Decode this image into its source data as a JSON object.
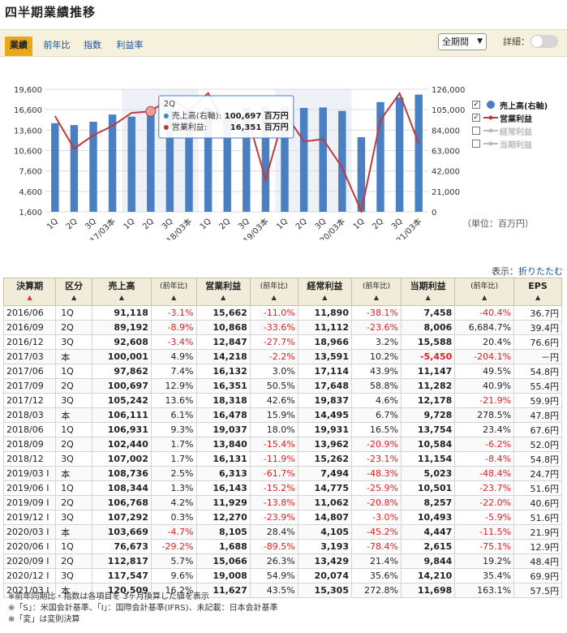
{
  "page_title": "四半期業績推移",
  "tabs": [
    {
      "label": "業績",
      "active": true
    },
    {
      "label": "前年比",
      "active": false
    },
    {
      "label": "指数",
      "active": false
    },
    {
      "label": "利益率",
      "active": false
    }
  ],
  "period_select": {
    "value": "全期間"
  },
  "detail_label": "詳細：",
  "legend": [
    {
      "label": "売上高(右軸)",
      "checked": true,
      "kind": "bar",
      "color": "#4a7fc1"
    },
    {
      "label": "営業利益",
      "checked": true,
      "kind": "line",
      "color": "#c0393b"
    },
    {
      "label": "経常利益",
      "checked": false,
      "kind": "line",
      "color": "#bbbbbb"
    },
    {
      "label": "当期利益",
      "checked": false,
      "kind": "line",
      "color": "#bbbbbb"
    }
  ],
  "tooltip": {
    "title": "2Q",
    "row1_label": "売上高(右軸):",
    "row1_value": "100,697 百万円",
    "row2_label": "営業利益:",
    "row2_value": "16,351 百万円"
  },
  "unit_note": "（単位：百万円）",
  "display_label": "表示：",
  "collapse_link": "折りたたむ",
  "chart_data": {
    "type": "bar",
    "categories": [
      "1Q",
      "2Q",
      "3Q",
      "2017/03本",
      "1Q",
      "2Q",
      "3Q",
      "2018/03本",
      "1Q",
      "2Q",
      "3Q",
      "2019/03本",
      "1Q",
      "2Q",
      "3Q",
      "2020/03本",
      "1Q",
      "2Q",
      "3Q",
      "2021/03本"
    ],
    "series": [
      {
        "name": "売上高(右軸)",
        "axis": "right",
        "kind": "bar",
        "values": [
          91118,
          89192,
          92608,
          100001,
          97862,
          100697,
          105242,
          106111,
          106931,
          102440,
          107002,
          108736,
          108344,
          106768,
          107292,
          103669,
          76673,
          112817,
          117547,
          120509
        ]
      },
      {
        "name": "営業利益",
        "axis": "left",
        "kind": "line",
        "values": [
          15662,
          10868,
          12847,
          14218,
          16132,
          16351,
          18318,
          16478,
          19037,
          13840,
          16131,
          6313,
          16143,
          11929,
          12270,
          8105,
          1688,
          15066,
          19008,
          11627
        ]
      }
    ],
    "left_axis": {
      "ticks": [
        "19,600",
        "16,600",
        "13,600",
        "10,600",
        "7,600",
        "4,600",
        "1,600"
      ],
      "range": [
        1600,
        19600
      ]
    },
    "right_axis": {
      "ticks": [
        "126,000",
        "105,000",
        "84,000",
        "63,000",
        "42,000",
        "21,000",
        "0"
      ],
      "range": [
        0,
        126000
      ]
    },
    "highlighted_index": 5,
    "grid": true
  },
  "table": {
    "headers": [
      {
        "label": "決算期",
        "sort_active": true
      },
      {
        "label": "区分",
        "sort_active": false
      },
      {
        "label": "売上高",
        "sort_active": false
      },
      {
        "label": "(前年比)",
        "small": true
      },
      {
        "label": "営業利益",
        "sort_active": false
      },
      {
        "label": "(前年比)",
        "small": true
      },
      {
        "label": "経常利益",
        "sort_active": false
      },
      {
        "label": "(前年比)",
        "small": true
      },
      {
        "label": "当期利益",
        "sort_active": false
      },
      {
        "label": "(前年比)",
        "small": true
      },
      {
        "label": "EPS",
        "sort_active": false
      }
    ],
    "sort_glyph": "▲",
    "rows": [
      [
        "2016/06",
        "1Q",
        "91,118",
        "-3.1%",
        "15,662",
        "-11.0%",
        "11,890",
        "-38.1%",
        "7,458",
        "-40.4%",
        "36.7円"
      ],
      [
        "2016/09",
        "2Q",
        "89,192",
        "-8.9%",
        "10,868",
        "-33.6%",
        "11,112",
        "-23.6%",
        "8,006",
        "6,684.7%",
        "39.4円"
      ],
      [
        "2016/12",
        "3Q",
        "92,608",
        "-3.4%",
        "12,847",
        "-27.7%",
        "18,966",
        "3.2%",
        "15,588",
        "20.4%",
        "76.6円"
      ],
      [
        "2017/03",
        "本",
        "100,001",
        "4.9%",
        "14,218",
        "-2.2%",
        "13,591",
        "10.2%",
        "-5,450",
        "-204.1%",
        "－円"
      ],
      [
        "2017/06",
        "1Q",
        "97,862",
        "7.4%",
        "16,132",
        "3.0%",
        "17,114",
        "43.9%",
        "11,147",
        "49.5%",
        "54.8円"
      ],
      [
        "2017/09",
        "2Q",
        "100,697",
        "12.9%",
        "16,351",
        "50.5%",
        "17,648",
        "58.8%",
        "11,282",
        "40.9%",
        "55.4円"
      ],
      [
        "2017/12",
        "3Q",
        "105,242",
        "13.6%",
        "18,318",
        "42.6%",
        "19,837",
        "4.6%",
        "12,178",
        "-21.9%",
        "59.9円"
      ],
      [
        "2018/03",
        "本",
        "106,111",
        "6.1%",
        "16,478",
        "15.9%",
        "14,495",
        "6.7%",
        "9,728",
        "278.5%",
        "47.8円"
      ],
      [
        "2018/06",
        "1Q",
        "106,931",
        "9.3%",
        "19,037",
        "18.0%",
        "19,931",
        "16.5%",
        "13,754",
        "23.4%",
        "67.6円"
      ],
      [
        "2018/09",
        "2Q",
        "102,440",
        "1.7%",
        "13,840",
        "-15.4%",
        "13,962",
        "-20.9%",
        "10,584",
        "-6.2%",
        "52.0円"
      ],
      [
        "2018/12",
        "3Q",
        "107,002",
        "1.7%",
        "16,131",
        "-11.9%",
        "15,262",
        "-23.1%",
        "11,154",
        "-8.4%",
        "54.8円"
      ],
      [
        "2019/03 I",
        "本",
        "108,736",
        "2.5%",
        "6,313",
        "-61.7%",
        "7,494",
        "-48.3%",
        "5,023",
        "-48.4%",
        "24.7円"
      ],
      [
        "2019/06 I",
        "1Q",
        "108,344",
        "1.3%",
        "16,143",
        "-15.2%",
        "14,775",
        "-25.9%",
        "10,501",
        "-23.7%",
        "51.6円"
      ],
      [
        "2019/09 I",
        "2Q",
        "106,768",
        "4.2%",
        "11,929",
        "-13.8%",
        "11,062",
        "-20.8%",
        "8,257",
        "-22.0%",
        "40.6円"
      ],
      [
        "2019/12 I",
        "3Q",
        "107,292",
        "0.3%",
        "12,270",
        "-23.9%",
        "14,807",
        "-3.0%",
        "10,493",
        "-5.9%",
        "51.6円"
      ],
      [
        "2020/03 I",
        "本",
        "103,669",
        "-4.7%",
        "8,105",
        "28.4%",
        "4,105",
        "-45.2%",
        "4,447",
        "-11.5%",
        "21.9円"
      ],
      [
        "2020/06 I",
        "1Q",
        "76,673",
        "-29.2%",
        "1,688",
        "-89.5%",
        "3,193",
        "-78.4%",
        "2,615",
        "-75.1%",
        "12.9円"
      ],
      [
        "2020/09 I",
        "2Q",
        "112,817",
        "5.7%",
        "15,066",
        "26.3%",
        "13,429",
        "21.4%",
        "9,844",
        "19.2%",
        "48.4円"
      ],
      [
        "2020/12 I",
        "3Q",
        "117,547",
        "9.6%",
        "19,008",
        "54.9%",
        "20,074",
        "35.6%",
        "14,210",
        "35.4%",
        "69.9円"
      ],
      [
        "2021/03 I",
        "本",
        "120,509",
        "16.2%",
        "11,627",
        "43.5%",
        "15,305",
        "272.8%",
        "11,698",
        "163.1%",
        "57.5円"
      ]
    ]
  },
  "notes": [
    "※前年同期比・指数は各項目を 3ヶ月換算した値を表示",
    "※「S」：米国会計基準、「I」：国際会計基準(IFRS)、未記載：日本会計基準",
    "※「変」は変則決算"
  ]
}
